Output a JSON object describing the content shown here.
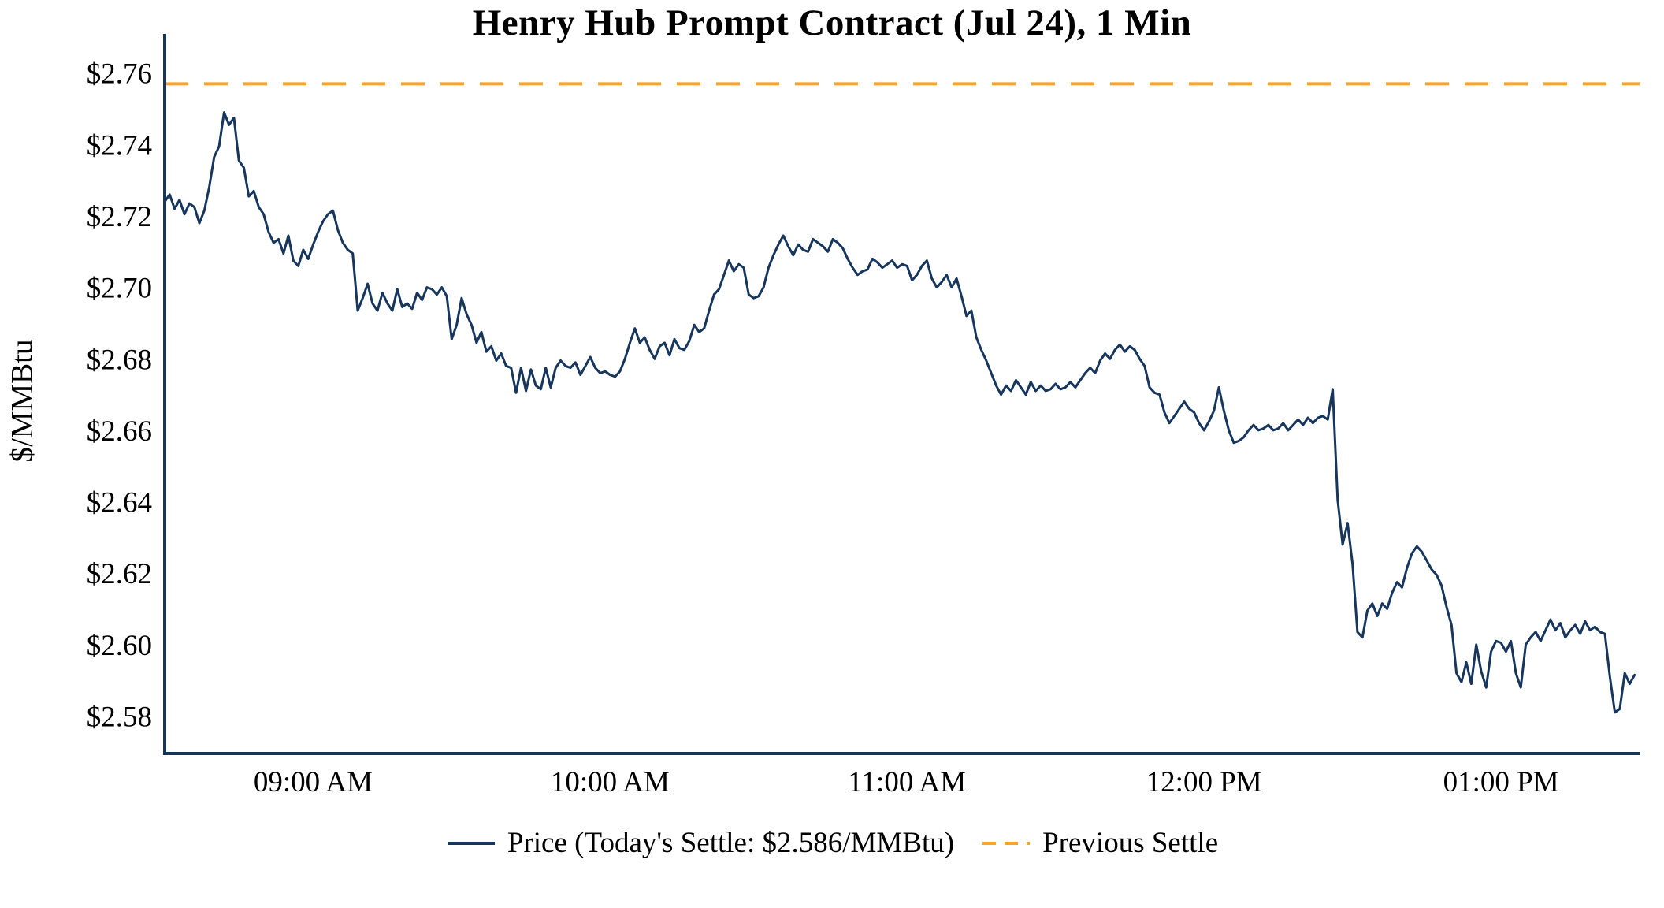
{
  "chart_data": {
    "type": "line",
    "title": "Henry Hub Prompt Contract (Jul 24), 1 Min",
    "xlabel": "",
    "ylabel": "$/MMBtu",
    "grid": false,
    "legend_position": "bottom",
    "axis_color": "#17365d",
    "x_start_time": "08:30 AM",
    "x_interval_minutes": 1,
    "x_range_minutes": [
      0,
      298
    ],
    "x_tick_minutes": [
      30,
      90,
      150,
      210,
      270
    ],
    "x_tick_labels": [
      "09:00 AM",
      "10:00 AM",
      "11:00 AM",
      "12:00 PM",
      "01:00 PM"
    ],
    "y_ticks": [
      2.58,
      2.6,
      2.62,
      2.64,
      2.66,
      2.68,
      2.7,
      2.72,
      2.74,
      2.76
    ],
    "y_tick_labels": [
      "$2.58",
      "$2.60",
      "$2.62",
      "$2.64",
      "$2.66",
      "$2.68",
      "$2.70",
      "$2.72",
      "$2.74",
      "$2.76"
    ],
    "ylim": [
      2.5695,
      2.767
    ],
    "previous_settle": 2.757,
    "todays_settle": 2.586,
    "series": [
      {
        "name": "Price (Today's Settle: $2.586/MMBtu)",
        "color": "#17365d",
        "style": "solid",
        "values": [
          2.724,
          2.726,
          2.722,
          2.7245,
          2.7205,
          2.7235,
          2.7225,
          2.718,
          2.7215,
          2.728,
          2.7365,
          2.7395,
          2.749,
          2.7455,
          2.7475,
          2.7355,
          2.7335,
          2.7255,
          2.727,
          2.7225,
          2.7205,
          2.7155,
          2.7125,
          2.7135,
          2.7095,
          2.7145,
          2.7075,
          2.706,
          2.7105,
          2.708,
          2.712,
          2.7155,
          2.7185,
          2.7205,
          2.7215,
          2.716,
          2.7125,
          2.7105,
          2.7095,
          2.6935,
          2.697,
          2.701,
          2.6955,
          2.6935,
          2.6985,
          2.6955,
          2.6935,
          2.6995,
          2.6945,
          2.6955,
          2.694,
          2.6985,
          2.6965,
          2.7,
          2.6995,
          2.698,
          2.7,
          2.6975,
          2.6855,
          2.6895,
          2.697,
          2.6925,
          2.6895,
          2.6845,
          2.6875,
          2.682,
          2.6835,
          2.6795,
          2.6815,
          2.678,
          2.6775,
          2.6705,
          2.6775,
          2.671,
          2.677,
          2.6725,
          2.6715,
          2.6775,
          2.672,
          2.6775,
          2.6795,
          2.678,
          2.6775,
          2.679,
          2.6755,
          2.678,
          2.6805,
          2.6775,
          2.676,
          2.6765,
          2.6755,
          2.675,
          2.6765,
          2.68,
          2.6845,
          2.6885,
          2.6845,
          2.686,
          2.6825,
          2.68,
          2.6835,
          2.6845,
          2.681,
          2.6855,
          2.683,
          2.6825,
          2.685,
          2.6895,
          2.6875,
          2.6885,
          2.6935,
          2.698,
          2.6995,
          2.7035,
          2.7075,
          2.7045,
          2.7065,
          2.7055,
          2.698,
          2.697,
          2.6975,
          2.7,
          2.7055,
          2.709,
          2.712,
          2.7145,
          2.7115,
          2.709,
          2.712,
          2.7105,
          2.71,
          2.7135,
          2.7125,
          2.7115,
          2.71,
          2.7135,
          2.7125,
          2.711,
          2.708,
          2.7055,
          2.7035,
          2.7045,
          2.705,
          2.708,
          2.707,
          2.7055,
          2.7065,
          2.7075,
          2.7055,
          2.7065,
          2.706,
          2.702,
          2.7035,
          2.706,
          2.7075,
          2.7025,
          2.7,
          2.7015,
          2.7035,
          2.7,
          2.7025,
          2.6975,
          2.692,
          2.6935,
          2.686,
          2.6825,
          2.6795,
          2.676,
          2.6725,
          2.67,
          2.6725,
          2.671,
          2.674,
          2.672,
          2.67,
          2.6735,
          2.671,
          2.6725,
          2.671,
          2.6715,
          2.673,
          2.6715,
          2.672,
          2.6735,
          2.672,
          2.674,
          2.676,
          2.6775,
          2.676,
          2.6795,
          2.6815,
          2.68,
          2.6825,
          2.684,
          2.682,
          2.6835,
          2.6825,
          2.68,
          2.678,
          2.672,
          2.6705,
          2.67,
          2.665,
          2.662,
          2.664,
          2.666,
          2.668,
          2.666,
          2.665,
          2.662,
          2.66,
          2.6625,
          2.6655,
          2.672,
          2.6655,
          2.66,
          2.6565,
          2.657,
          2.658,
          2.66,
          2.6615,
          2.66,
          2.6605,
          2.6615,
          2.66,
          2.6605,
          2.662,
          2.66,
          2.6615,
          2.663,
          2.6615,
          2.6635,
          2.662,
          2.6635,
          2.664,
          2.663,
          2.6715,
          2.6405,
          2.628,
          2.634,
          2.6225,
          2.6035,
          2.602,
          2.6095,
          2.6115,
          2.608,
          2.6115,
          2.61,
          2.6145,
          2.6175,
          2.616,
          2.6215,
          2.6255,
          2.6275,
          2.626,
          2.6235,
          2.621,
          2.6195,
          2.6165,
          2.6105,
          2.6055,
          2.592,
          2.5895,
          2.595,
          2.589,
          2.6,
          2.5925,
          2.588,
          2.598,
          2.601,
          2.6005,
          2.598,
          2.601,
          2.592,
          2.588,
          2.6,
          2.602,
          2.6035,
          2.601,
          2.604,
          2.607,
          2.604,
          2.606,
          2.602,
          2.604,
          2.6055,
          2.603,
          2.6065,
          2.604,
          2.605,
          2.6035,
          2.603,
          2.591,
          2.581,
          2.582,
          2.592,
          2.589,
          2.5915
        ]
      },
      {
        "name": "Previous Settle",
        "color": "#ffa424",
        "style": "dashed",
        "value": 2.757
      }
    ],
    "legend": {
      "items": [
        {
          "label": "Price (Today's Settle: $2.586/MMBtu)",
          "color": "#17365d",
          "style": "solid"
        },
        {
          "label": "Previous Settle",
          "color": "#ffa424",
          "style": "dashed"
        }
      ]
    }
  }
}
